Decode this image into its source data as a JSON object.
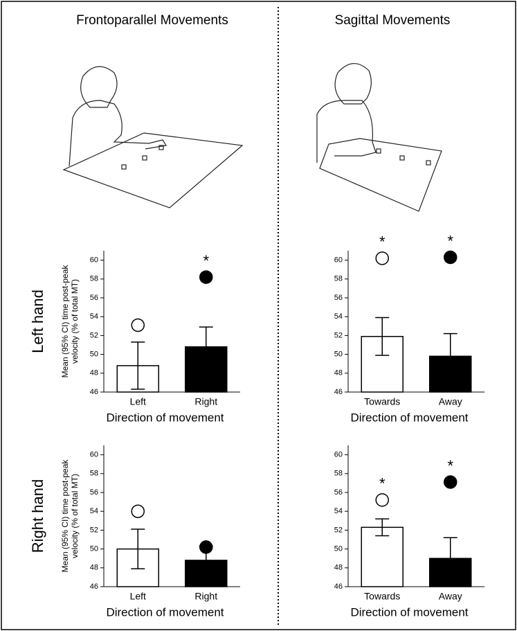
{
  "column_titles": [
    "Frontoparallel Movements",
    "Sagittal Movements"
  ],
  "row_labels": [
    "Left hand",
    "Right hand"
  ],
  "chart_data": [
    {
      "type": "bar",
      "categories": [
        "Left",
        "Right"
      ],
      "values": [
        48.8,
        50.8
      ],
      "errors": [
        2.5,
        2.1
      ],
      "colors": [
        "#ffffff",
        "#000000"
      ],
      "markers": [
        53.1,
        58.2
      ],
      "marker_labels": [
        null,
        "*"
      ],
      "ylim": [
        46,
        61
      ],
      "yticks": [
        46,
        48,
        50,
        52,
        54,
        56,
        58,
        60
      ],
      "xlabel": "Direction of movement",
      "ylabel": [
        "Mean (95% CI) time post-peak",
        "velocity (% of total MT)"
      ]
    },
    {
      "type": "bar",
      "categories": [
        "Towards",
        "Away"
      ],
      "values": [
        51.9,
        49.8
      ],
      "errors": [
        2.0,
        2.4
      ],
      "colors": [
        "#ffffff",
        "#000000"
      ],
      "markers": [
        60.2,
        60.3
      ],
      "marker_labels": [
        "*",
        "*"
      ],
      "ylim": [
        46,
        61
      ],
      "yticks": [
        46,
        48,
        50,
        52,
        54,
        56,
        58,
        60
      ],
      "xlabel": "Direction of movement"
    },
    {
      "type": "bar",
      "categories": [
        "Left",
        "Right"
      ],
      "values": [
        50.0,
        48.8
      ],
      "errors": [
        2.1,
        1.5
      ],
      "colors": [
        "#ffffff",
        "#000000"
      ],
      "markers": [
        54.0,
        50.2
      ],
      "marker_labels": [
        null,
        null
      ],
      "ylim": [
        46,
        61
      ],
      "yticks": [
        46,
        48,
        50,
        52,
        54,
        56,
        58,
        60
      ],
      "xlabel": "Direction of movement",
      "ylabel": [
        "Mean (95% CI) time post-peak",
        "velocity (% of total MT)"
      ]
    },
    {
      "type": "bar",
      "categories": [
        "Towards",
        "Away"
      ],
      "values": [
        52.3,
        49.0
      ],
      "errors": [
        0.9,
        2.2
      ],
      "colors": [
        "#ffffff",
        "#000000"
      ],
      "markers": [
        55.2,
        57.1
      ],
      "marker_labels": [
        "*",
        "*"
      ],
      "ylim": [
        46,
        61
      ],
      "yticks": [
        46,
        48,
        50,
        52,
        54,
        56,
        58,
        60
      ],
      "xlabel": "Direction of movement"
    }
  ]
}
